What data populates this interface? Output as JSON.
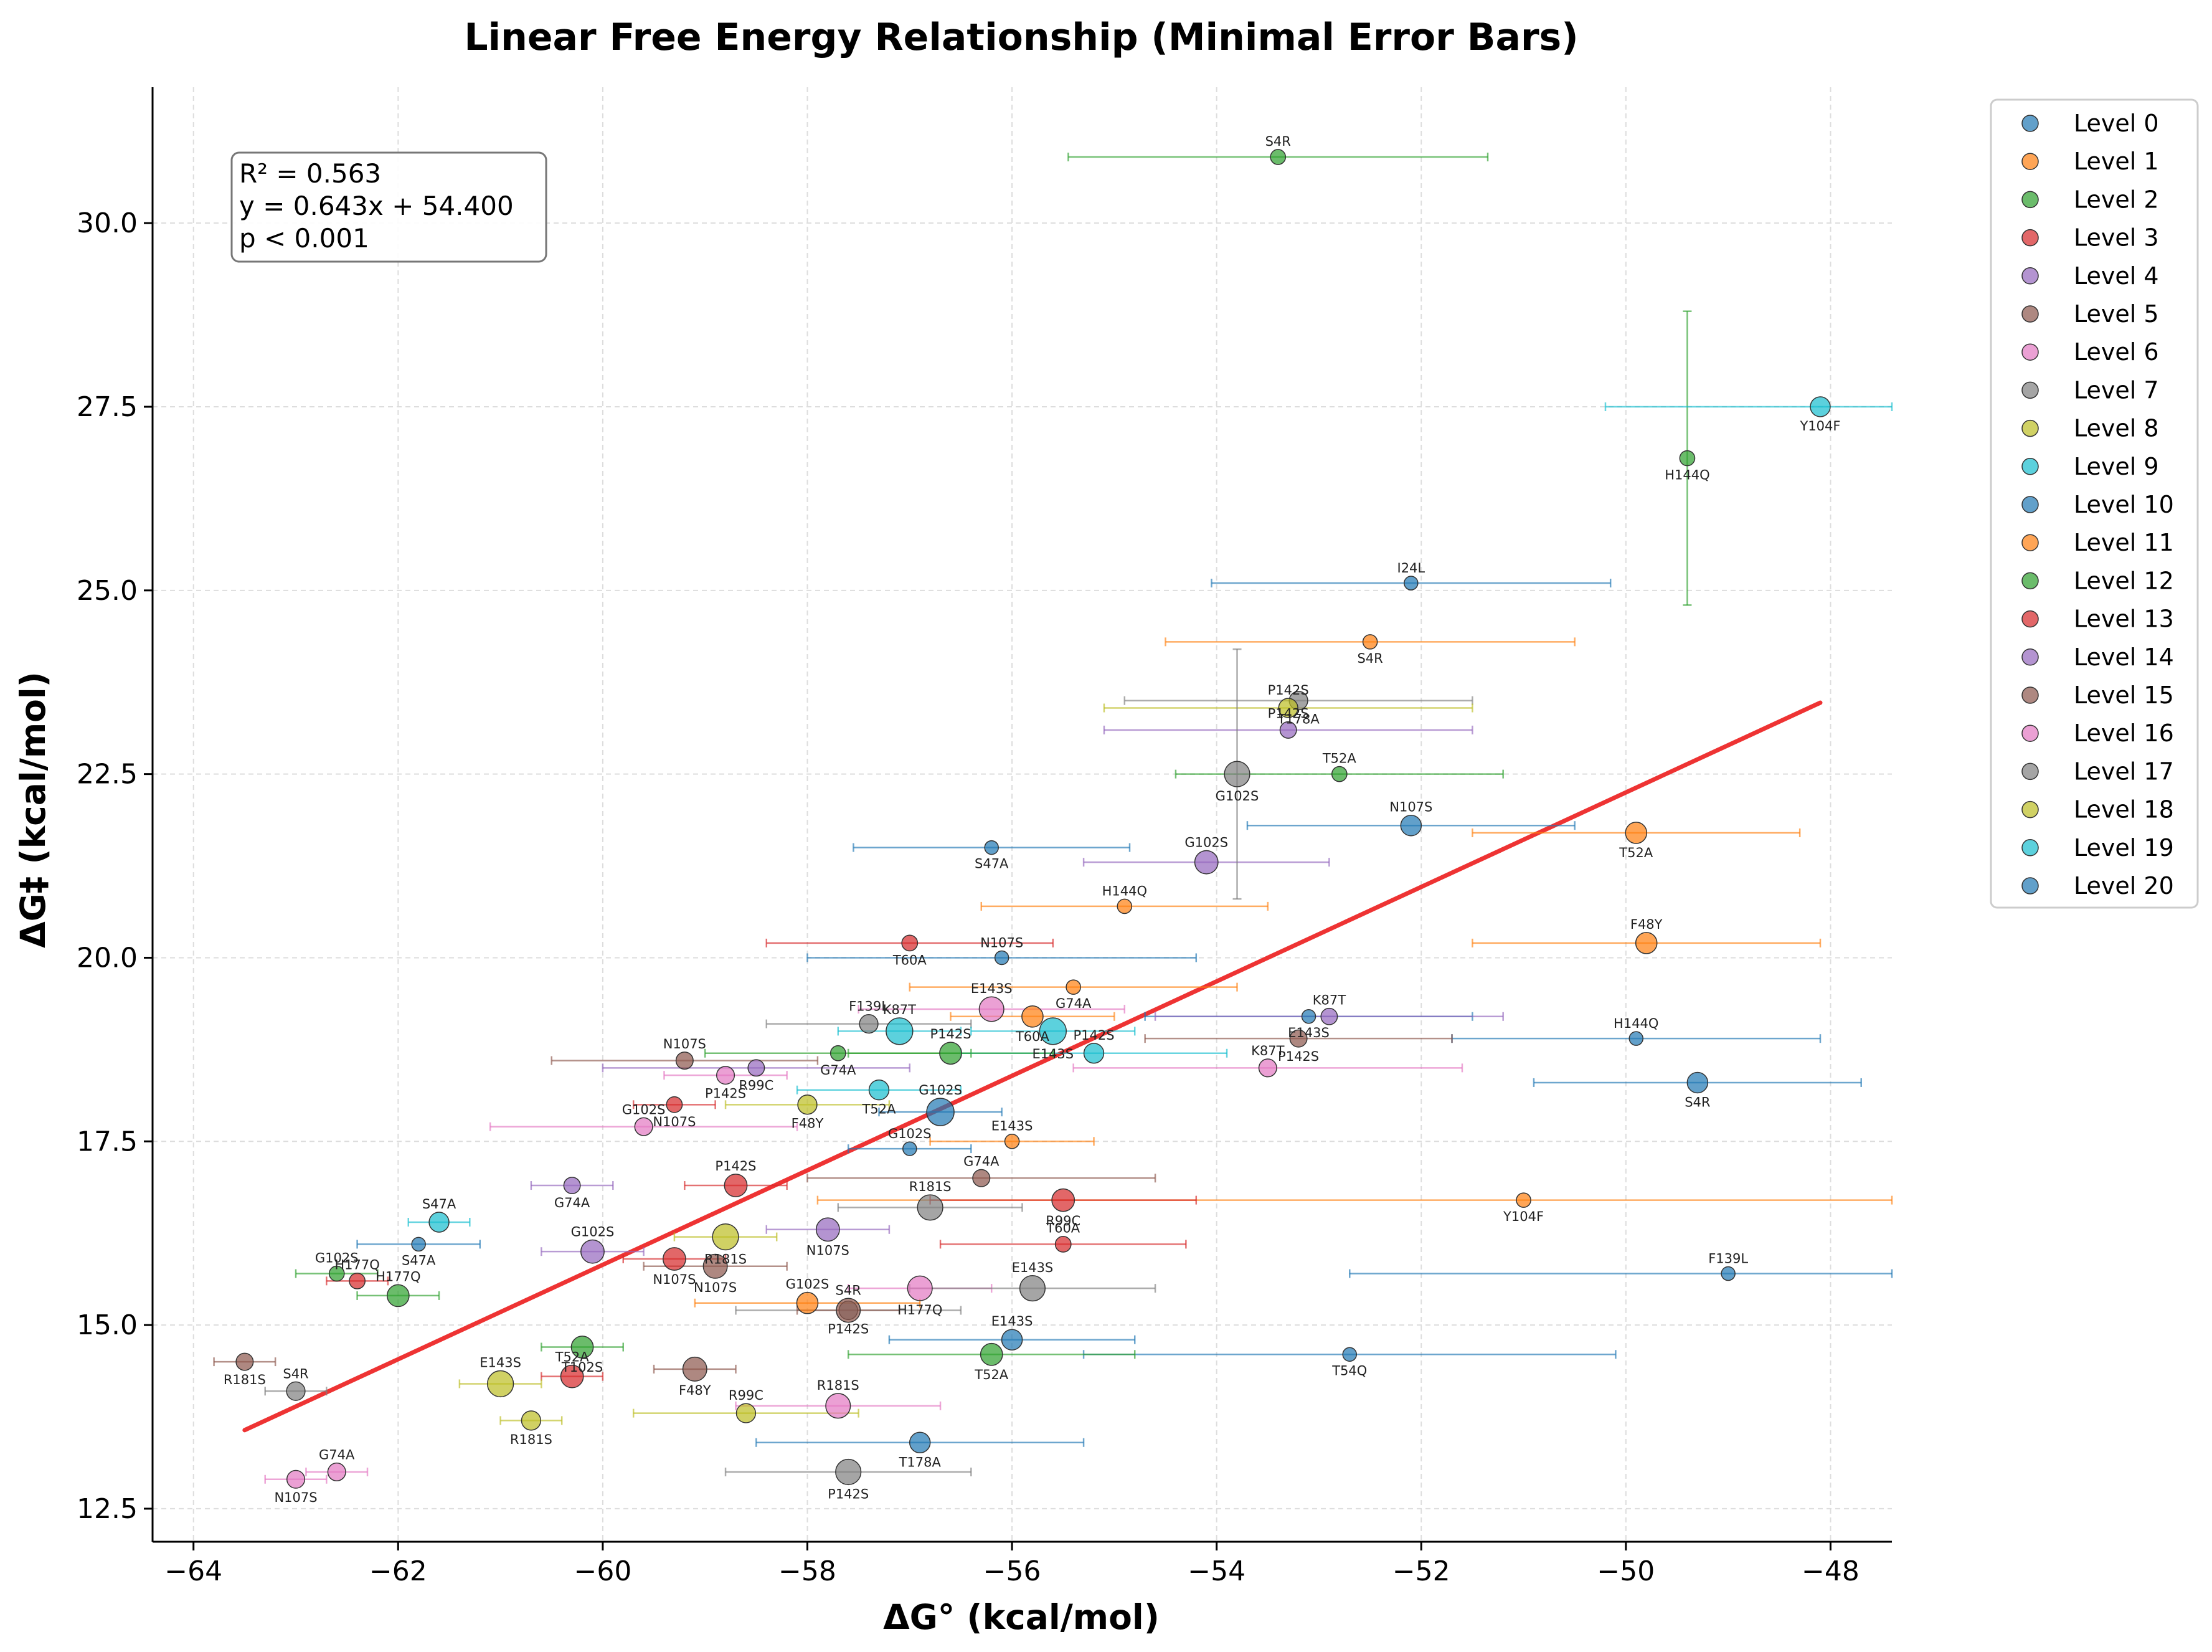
{
  "chart_data": {
    "type": "scatter",
    "title": "Linear Free Energy Relationship (Minimal Error Bars)",
    "xlabel": "ΔG° (kcal/mol)",
    "ylabel": "ΔG‡ (kcal/mol)",
    "xlim": [
      -64.4,
      -47.4
    ],
    "ylim": [
      12.05,
      31.85
    ],
    "xticks": [
      -64,
      -62,
      -60,
      -58,
      -56,
      -54,
      -52,
      -50,
      -48
    ],
    "xtick_labels": [
      "−64",
      "−62",
      "−60",
      "−58",
      "−56",
      "−54",
      "−52",
      "−50",
      "−48"
    ],
    "yticks": [
      12.5,
      15.0,
      17.5,
      20.0,
      22.5,
      25.0,
      27.5,
      30.0
    ],
    "ytick_labels": [
      "12.5",
      "15.0",
      "17.5",
      "20.0",
      "22.5",
      "25.0",
      "27.5",
      "30.0"
    ],
    "grid": true,
    "legend_position": "outside-right",
    "stats": {
      "r2": "R² = 0.563",
      "equation": "y = 0.643x + 54.400",
      "p": "p < 0.001"
    },
    "fit_line": {
      "slope": 0.643,
      "intercept": 54.4,
      "x_range": [
        -63.5,
        -48.1
      ],
      "color": "#ee3333"
    },
    "series": [
      {
        "name": "Level 0",
        "color": "#1f77b4",
        "points": [
          {
            "x": -52.1,
            "y": 25.1,
            "xerr": 1.95,
            "yerr": 0,
            "label": "I24L"
          },
          {
            "x": -53.1,
            "y": 19.2,
            "xerr": 1.6,
            "yerr": 0,
            "label": "E143S"
          },
          {
            "x": -49.9,
            "y": 18.9,
            "xerr": 1.8,
            "yerr": 0,
            "label": "H144Q"
          },
          {
            "x": -56.2,
            "y": 21.5,
            "xerr": 1.35,
            "yerr": 0,
            "label": "S47A"
          },
          {
            "x": -56.1,
            "y": 20.0,
            "xerr": 1.9,
            "yerr": 0,
            "label": "N107S"
          },
          {
            "x": -52.7,
            "y": 14.6,
            "xerr": 2.6,
            "yerr": 0,
            "label": "T54Q"
          },
          {
            "x": -49.0,
            "y": 15.7,
            "xerr": 3.7,
            "yerr": 0,
            "label": "F139L"
          },
          {
            "x": -61.8,
            "y": 16.1,
            "xerr": 0.6,
            "yerr": 0,
            "label": "S47A"
          },
          {
            "x": -57.0,
            "y": 17.4,
            "xerr": 0.6,
            "yerr": 0,
            "label": "G102S"
          }
        ]
      },
      {
        "name": "Level 1",
        "color": "#ff7f0e",
        "points": [
          {
            "x": -52.5,
            "y": 24.3,
            "xerr": 2.0,
            "yerr": 0,
            "label": "S4R"
          },
          {
            "x": -54.9,
            "y": 20.7,
            "xerr": 1.4,
            "yerr": 0,
            "label": "H144Q"
          },
          {
            "x": -51.0,
            "y": 16.7,
            "xerr": 6.9,
            "yerr": 0,
            "label": "Y104F"
          },
          {
            "x": -56.0,
            "y": 17.5,
            "xerr": 0.8,
            "yerr": 0,
            "label": "E143S"
          },
          {
            "x": -55.4,
            "y": 19.6,
            "xerr": 1.6,
            "yerr": 0,
            "label": "G74A"
          }
        ]
      },
      {
        "name": "Level 2",
        "color": "#2ca02c",
        "points": [
          {
            "x": -53.4,
            "y": 30.9,
            "xerr": 2.05,
            "yerr": 0,
            "label": "S4R"
          },
          {
            "x": -49.4,
            "y": 26.8,
            "xerr": 0,
            "yerr": 2.0,
            "label": "H144Q"
          },
          {
            "x": -52.8,
            "y": 22.5,
            "xerr": 1.6,
            "yerr": 0,
            "label": "T52A"
          },
          {
            "x": -57.7,
            "y": 18.7,
            "xerr": 1.3,
            "yerr": 0,
            "label": "G74A"
          },
          {
            "x": -62.6,
            "y": 15.7,
            "xerr": 0.4,
            "yerr": 0,
            "label": "G102S"
          }
        ]
      },
      {
        "name": "Level 3",
        "color": "#d62728",
        "points": [
          {
            "x": -57.0,
            "y": 20.2,
            "xerr": 1.4,
            "yerr": 0,
            "label": "T60A"
          },
          {
            "x": -55.5,
            "y": 16.1,
            "xerr": 1.2,
            "yerr": 0,
            "label": "T60A"
          },
          {
            "x": -59.3,
            "y": 18.0,
            "xerr": 0.4,
            "yerr": 0,
            "label": "N107S"
          },
          {
            "x": -62.4,
            "y": 15.6,
            "xerr": 0.3,
            "yerr": 0,
            "label": "H177Q"
          }
        ]
      },
      {
        "name": "Level 4",
        "color": "#9467bd",
        "points": [
          {
            "x": -52.9,
            "y": 19.2,
            "xerr": 1.7,
            "yerr": 0,
            "label": "K87T"
          },
          {
            "x": -58.5,
            "y": 18.5,
            "xerr": 1.5,
            "yerr": 0,
            "label": "R99C"
          },
          {
            "x": -53.3,
            "y": 23.1,
            "xerr": 1.8,
            "yerr": 0,
            "label": "P142S"
          },
          {
            "x": -60.3,
            "y": 16.9,
            "xerr": 0.4,
            "yerr": 0,
            "label": "G74A"
          }
        ]
      },
      {
        "name": "Level 5",
        "color": "#8c564b",
        "points": [
          {
            "x": -53.2,
            "y": 18.9,
            "xerr": 1.5,
            "yerr": 0,
            "label": "P142S"
          },
          {
            "x": -56.3,
            "y": 17.0,
            "xerr": 1.7,
            "yerr": 0,
            "label": "G74A"
          },
          {
            "x": -63.5,
            "y": 14.5,
            "xerr": 0.3,
            "yerr": 0,
            "label": "R181S"
          },
          {
            "x": -59.2,
            "y": 18.6,
            "xerr": 1.3,
            "yerr": 0,
            "label": "N107S"
          }
        ]
      },
      {
        "name": "Level 6",
        "color": "#e377c2",
        "points": [
          {
            "x": -53.5,
            "y": 18.5,
            "xerr": 1.9,
            "yerr": 0,
            "label": "K87T"
          },
          {
            "x": -58.8,
            "y": 18.4,
            "xerr": 0.6,
            "yerr": 0,
            "label": "P142S"
          },
          {
            "x": -59.6,
            "y": 17.7,
            "xerr": 1.5,
            "yerr": 0,
            "label": "G102S"
          },
          {
            "x": -63.0,
            "y": 12.9,
            "xerr": 0.3,
            "yerr": 0,
            "label": "N107S"
          },
          {
            "x": -62.6,
            "y": 13.0,
            "xerr": 0.3,
            "yerr": 0,
            "label": "G74A"
          }
        ]
      },
      {
        "name": "Level 7",
        "color": "#7f7f7f",
        "points": [
          {
            "x": -53.2,
            "y": 23.5,
            "xerr": 1.7,
            "yerr": 0,
            "label": "T178A"
          },
          {
            "x": -57.4,
            "y": 19.1,
            "xerr": 1.0,
            "yerr": 0,
            "label": "F139L"
          },
          {
            "x": -57.6,
            "y": 15.2,
            "xerr": 1.1,
            "yerr": 0,
            "label": "P142S"
          },
          {
            "x": -63.0,
            "y": 14.1,
            "xerr": 0.3,
            "yerr": 0,
            "label": "S4R"
          }
        ]
      },
      {
        "name": "Level 8",
        "color": "#bcbd22",
        "points": [
          {
            "x": -53.3,
            "y": 23.4,
            "xerr": 1.8,
            "yerr": 0,
            "label": "P142S"
          },
          {
            "x": -58.0,
            "y": 18.0,
            "xerr": 0.8,
            "yerr": 0,
            "label": "F48Y"
          },
          {
            "x": -58.6,
            "y": 13.8,
            "xerr": 1.1,
            "yerr": 0,
            "label": "R99C"
          },
          {
            "x": -60.7,
            "y": 13.7,
            "xerr": 0.3,
            "yerr": 0,
            "label": "R181S"
          }
        ]
      },
      {
        "name": "Level 9",
        "color": "#17becf",
        "points": [
          {
            "x": -48.1,
            "y": 27.5,
            "xerr": 2.1,
            "yerr": 0,
            "label": "Y104F"
          },
          {
            "x": -55.2,
            "y": 18.7,
            "xerr": 1.3,
            "yerr": 0,
            "label": "P142S"
          },
          {
            "x": -57.3,
            "y": 18.2,
            "xerr": 0.8,
            "yerr": 0,
            "label": "T52A"
          },
          {
            "x": -61.6,
            "y": 16.4,
            "xerr": 0.3,
            "yerr": 0,
            "label": "S47A"
          }
        ]
      },
      {
        "name": "Level 10",
        "color": "#1f77b4",
        "points": [
          {
            "x": -52.1,
            "y": 21.8,
            "xerr": 1.6,
            "yerr": 0,
            "label": "N107S"
          },
          {
            "x": -49.3,
            "y": 18.3,
            "xerr": 1.6,
            "yerr": 0,
            "label": "S4R"
          },
          {
            "x": -56.0,
            "y": 14.8,
            "xerr": 1.2,
            "yerr": 0,
            "label": "E143S"
          },
          {
            "x": -56.9,
            "y": 13.4,
            "xerr": 1.6,
            "yerr": 0,
            "label": "T178A"
          }
        ]
      },
      {
        "name": "Level 11",
        "color": "#ff7f0e",
        "points": [
          {
            "x": -49.9,
            "y": 21.7,
            "xerr": 1.6,
            "yerr": 0,
            "label": "T52A"
          },
          {
            "x": -49.8,
            "y": 20.2,
            "xerr": 1.7,
            "yerr": 0,
            "label": "F48Y"
          },
          {
            "x": -55.8,
            "y": 19.2,
            "xerr": 0.8,
            "yerr": 0,
            "label": "T60A"
          },
          {
            "x": -58.0,
            "y": 15.3,
            "xerr": 1.1,
            "yerr": 0,
            "label": "G102S"
          }
        ]
      },
      {
        "name": "Level 12",
        "color": "#2ca02c",
        "points": [
          {
            "x": -56.6,
            "y": 18.7,
            "xerr": 1.0,
            "yerr": 0,
            "label": "P142S"
          },
          {
            "x": -56.2,
            "y": 14.6,
            "xerr": 1.4,
            "yerr": 0,
            "label": "T52A"
          },
          {
            "x": -62.0,
            "y": 15.4,
            "xerr": 0.4,
            "yerr": 0,
            "label": "H177Q"
          },
          {
            "x": -60.2,
            "y": 14.7,
            "xerr": 0.4,
            "yerr": 0,
            "label": "T102S"
          }
        ]
      },
      {
        "name": "Level 13",
        "color": "#d62728",
        "points": [
          {
            "x": -55.5,
            "y": 16.7,
            "xerr": 1.3,
            "yerr": 0,
            "label": "R99C"
          },
          {
            "x": -58.7,
            "y": 16.9,
            "xerr": 0.5,
            "yerr": 0,
            "label": "P142S"
          },
          {
            "x": -59.3,
            "y": 15.9,
            "xerr": 0.5,
            "yerr": 0,
            "label": "N107S"
          },
          {
            "x": -60.3,
            "y": 14.3,
            "xerr": 0.3,
            "yerr": 0,
            "label": "T52A"
          }
        ]
      },
      {
        "name": "Level 14",
        "color": "#9467bd",
        "points": [
          {
            "x": -54.1,
            "y": 21.3,
            "xerr": 1.2,
            "yerr": 0,
            "label": "G102S"
          },
          {
            "x": -57.8,
            "y": 16.3,
            "xerr": 0.6,
            "yerr": 0,
            "label": "N107S"
          },
          {
            "x": -60.1,
            "y": 16.0,
            "xerr": 0.5,
            "yerr": 0,
            "label": "G102S"
          }
        ]
      },
      {
        "name": "Level 15",
        "color": "#8c564b",
        "points": [
          {
            "x": -58.9,
            "y": 15.8,
            "xerr": 0.7,
            "yerr": 0,
            "label": "N107S"
          },
          {
            "x": -57.6,
            "y": 15.2,
            "xerr": 0.5,
            "yerr": 0,
            "label": "S4R"
          },
          {
            "x": -59.1,
            "y": 14.4,
            "xerr": 0.4,
            "yerr": 0,
            "label": "F48Y"
          }
        ]
      },
      {
        "name": "Level 16",
        "color": "#e377c2",
        "points": [
          {
            "x": -56.2,
            "y": 19.3,
            "xerr": 1.3,
            "yerr": 0,
            "label": "E143S"
          },
          {
            "x": -56.9,
            "y": 15.5,
            "xerr": 0.7,
            "yerr": 0,
            "label": "H177Q"
          },
          {
            "x": -57.7,
            "y": 13.9,
            "xerr": 1.0,
            "yerr": 0,
            "label": "R181S"
          }
        ]
      },
      {
        "name": "Level 17",
        "color": "#7f7f7f",
        "points": [
          {
            "x": -53.8,
            "y": 22.5,
            "xerr": 0,
            "yerr": 1.7,
            "label": "G102S"
          },
          {
            "x": -55.8,
            "y": 15.5,
            "xerr": 1.2,
            "yerr": 0,
            "label": "E143S"
          },
          {
            "x": -57.6,
            "y": 13.0,
            "xerr": 1.2,
            "yerr": 0,
            "label": "P142S"
          },
          {
            "x": -56.8,
            "y": 16.6,
            "xerr": 0.9,
            "yerr": 0,
            "label": "R181S"
          }
        ]
      },
      {
        "name": "Level 18",
        "color": "#bcbd22",
        "points": [
          {
            "x": -61.0,
            "y": 14.2,
            "xerr": 0.4,
            "yerr": 0,
            "label": "E143S"
          },
          {
            "x": -58.8,
            "y": 16.2,
            "xerr": 0.5,
            "yerr": 0,
            "label": "R181S"
          }
        ]
      },
      {
        "name": "Level 19",
        "color": "#17becf",
        "points": [
          {
            "x": -55.6,
            "y": 19.0,
            "xerr": 0.8,
            "yerr": 0,
            "label": "E143S"
          },
          {
            "x": -57.1,
            "y": 19.0,
            "xerr": 0.6,
            "yerr": 0,
            "label": "K87T"
          }
        ]
      },
      {
        "name": "Level 20",
        "color": "#1f77b4",
        "points": [
          {
            "x": -56.7,
            "y": 17.9,
            "xerr": 0.6,
            "yerr": 0,
            "label": "G102S"
          }
        ]
      }
    ]
  }
}
